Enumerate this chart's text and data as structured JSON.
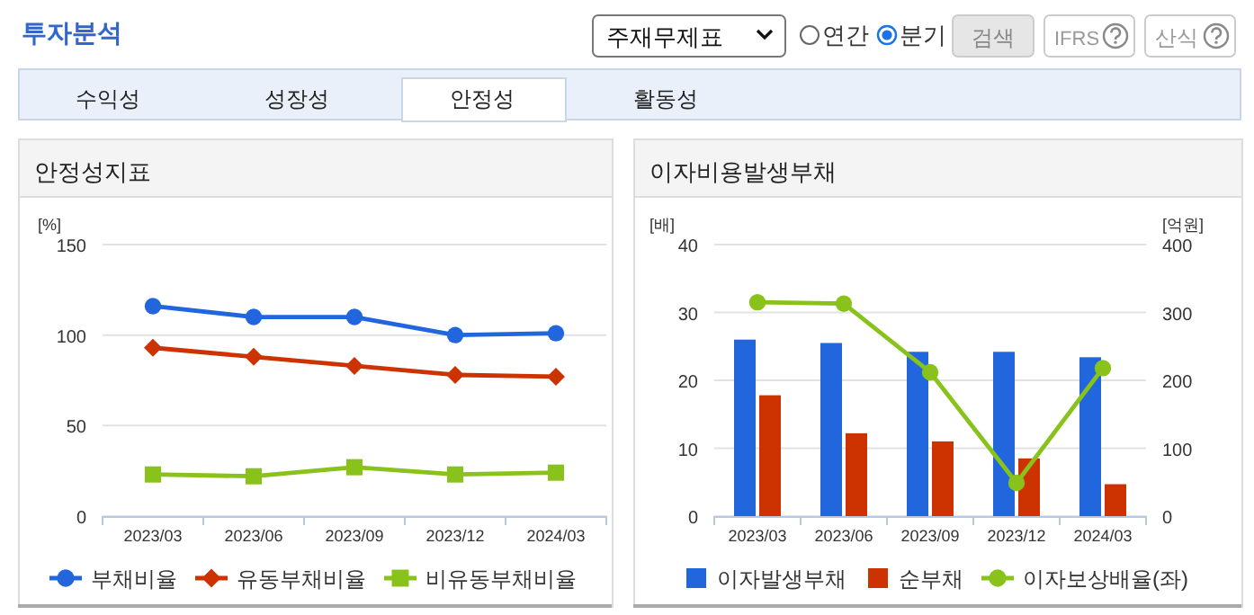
{
  "chart_data": [
    {
      "type": "other",
      "annotations": [
        "투자분석",
        "주재무제표",
        "연간",
        "분기",
        "검색",
        "IFRS",
        "산식",
        "수익성",
        "성장성",
        "안정성",
        "활동성"
      ]
    },
    {
      "type": "line",
      "title": "안정성지표",
      "ylabel": "[%]",
      "categories": [
        "2023/03",
        "2023/06",
        "2023/09",
        "2023/12",
        "2024/03"
      ],
      "ylim": [
        0,
        150
      ],
      "yticks": [
        0,
        50,
        100,
        150
      ],
      "grid": "y",
      "legend": "bottom",
      "line_style": "solid",
      "series": [
        {
          "name": "부채비율",
          "color": "#2266dd",
          "marker": "circle",
          "values": [
            116,
            110,
            110,
            100,
            101
          ]
        },
        {
          "name": "유동부채비율",
          "color": "#cc3300",
          "marker": "diamond",
          "values": [
            93,
            88,
            83,
            78,
            77
          ]
        },
        {
          "name": "비유동부채비율",
          "color": "#88c21a",
          "marker": "square",
          "values": [
            23,
            22,
            27,
            23,
            24
          ]
        }
      ]
    },
    {
      "type": "bar",
      "title": "이자비용발생부채",
      "ylabel": "[배]",
      "y2label": "[억원]",
      "categories": [
        "2023/03",
        "2023/06",
        "2023/09",
        "2023/12",
        "2024/03"
      ],
      "ylim": [
        0,
        40
      ],
      "yticks": [
        0,
        10,
        20,
        30,
        40
      ],
      "y2lim": [
        0,
        400
      ],
      "y2ticks": [
        0,
        100,
        200,
        300,
        400
      ],
      "grid": "y",
      "legend": "bottom",
      "series": [
        {
          "name": "이자발생부채",
          "color": "#2266dd",
          "axis": "y2",
          "values": [
            260,
            255,
            242,
            242,
            234
          ]
        },
        {
          "name": "순부채",
          "color": "#cc3300",
          "axis": "y2",
          "values": [
            178,
            122,
            110,
            85,
            47
          ]
        },
        {
          "name": "이자보상배율(좌)",
          "color": "#88c21a",
          "type": "line",
          "marker": "circle",
          "axis": "y",
          "values": [
            31.5,
            31.3,
            21.2,
            4.9,
            21.8
          ]
        }
      ]
    }
  ]
}
